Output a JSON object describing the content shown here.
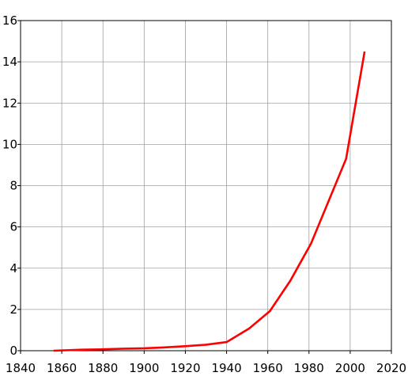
{
  "chart_data": {
    "type": "line",
    "title": "",
    "xlabel": "",
    "ylabel": "",
    "xlim": [
      1840,
      2020
    ],
    "ylim": [
      0,
      16
    ],
    "x_ticks": [
      1840,
      1860,
      1880,
      1900,
      1920,
      1940,
      1960,
      1980,
      2000,
      2020
    ],
    "y_ticks": [
      0,
      2,
      4,
      6,
      8,
      10,
      12,
      14,
      16
    ],
    "x_tick_labels": [
      "1840",
      "1860",
      "1880",
      "1900",
      "1920",
      "1940",
      "1960",
      "1980",
      "2000",
      "2020"
    ],
    "y_tick_labels": [
      "0",
      "2",
      "4",
      "6",
      "8",
      "10",
      "12",
      "14",
      "16"
    ],
    "grid": true,
    "legend": "none",
    "line_color": "#ff0000",
    "grid_color": "#a0a0a0",
    "series": [
      {
        "x": [
          1856,
          1870,
          1880,
          1890,
          1900,
          1910,
          1920,
          1930,
          1940,
          1951,
          1961,
          1971,
          1981,
          1998,
          2007
        ],
        "y": [
          0.0,
          0.05,
          0.07,
          0.1,
          0.12,
          0.16,
          0.22,
          0.29,
          0.42,
          1.08,
          1.92,
          3.4,
          5.2,
          9.3,
          14.5
        ]
      }
    ]
  }
}
